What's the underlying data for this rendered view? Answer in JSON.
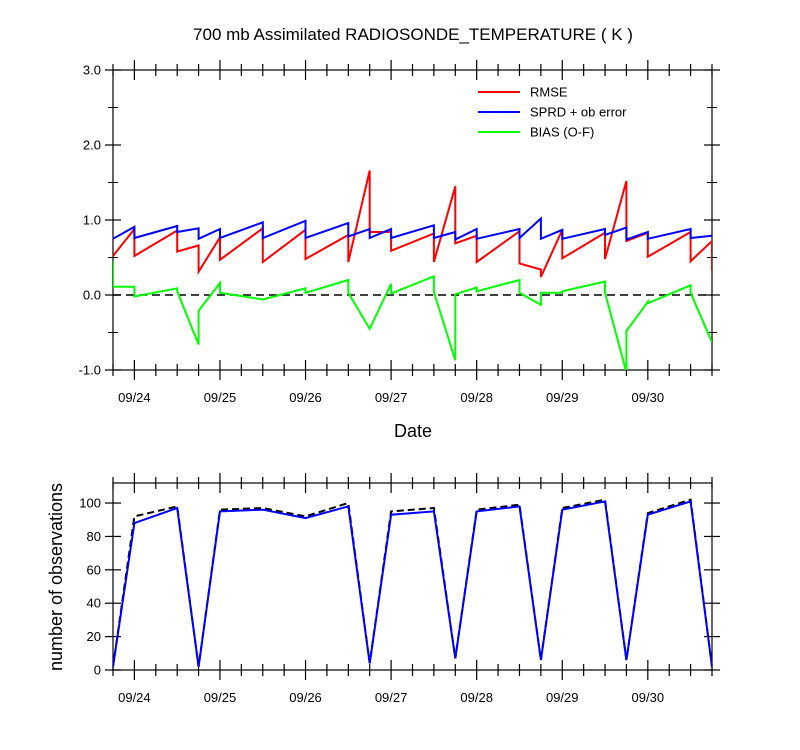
{
  "chart_data": [
    {
      "type": "line",
      "title": "700 mb Assimilated RADIOSONDE_TEMPERATURE ( K )",
      "xlabel": "Date",
      "ylabel": "",
      "x_tick_labels": [
        "09/24",
        "09/25",
        "09/26",
        "09/27",
        "09/28",
        "09/29",
        "09/30"
      ],
      "y_tick_labels": [
        "3.0",
        "2.0",
        "1.0",
        "0.0",
        "-1.0"
      ],
      "xlim": [
        23.75,
        30.75
      ],
      "ylim": [
        -1.0,
        3.0
      ],
      "grid": false,
      "legend_position": "top-right",
      "reference_line": {
        "y": 0.0,
        "style": "dashed"
      },
      "series": [
        {
          "name": "RMSE",
          "color": "#ff0000",
          "points": [
            [
              23.75,
              0.52
            ],
            [
              24.0,
              0.88
            ],
            [
              24.0,
              0.52
            ],
            [
              24.5,
              0.86
            ],
            [
              24.5,
              0.58
            ],
            [
              24.75,
              0.66
            ],
            [
              24.75,
              0.31
            ],
            [
              25.0,
              0.77
            ],
            [
              25.0,
              0.47
            ],
            [
              25.5,
              0.89
            ],
            [
              25.5,
              0.44
            ],
            [
              26.0,
              0.87
            ],
            [
              26.0,
              0.48
            ],
            [
              26.5,
              0.8
            ],
            [
              26.5,
              0.44
            ],
            [
              26.75,
              1.66
            ],
            [
              26.75,
              0.84
            ],
            [
              27.0,
              0.84
            ],
            [
              27.0,
              0.59
            ],
            [
              27.5,
              0.82
            ],
            [
              27.5,
              0.44
            ],
            [
              27.75,
              1.45
            ],
            [
              27.75,
              0.69
            ],
            [
              28.0,
              0.79
            ],
            [
              28.0,
              0.44
            ],
            [
              28.5,
              0.85
            ],
            [
              28.5,
              0.42
            ],
            [
              28.75,
              0.34
            ],
            [
              28.75,
              0.24
            ],
            [
              29.0,
              0.87
            ],
            [
              29.0,
              0.49
            ],
            [
              29.5,
              0.83
            ],
            [
              29.5,
              0.48
            ],
            [
              29.75,
              1.52
            ],
            [
              29.75,
              0.72
            ],
            [
              30.0,
              0.83
            ],
            [
              30.0,
              0.51
            ],
            [
              30.5,
              0.84
            ],
            [
              30.5,
              0.45
            ],
            [
              30.75,
              0.72
            ],
            [
              30.75,
              0.33
            ]
          ]
        },
        {
          "name": "SPRD + ob error",
          "color": "#0000ff",
          "points": [
            [
              23.75,
              0.75
            ],
            [
              24.0,
              0.91
            ],
            [
              24.0,
              0.76
            ],
            [
              24.5,
              0.92
            ],
            [
              24.5,
              0.84
            ],
            [
              24.75,
              0.89
            ],
            [
              24.75,
              0.75
            ],
            [
              25.0,
              0.88
            ],
            [
              25.0,
              0.76
            ],
            [
              25.5,
              0.97
            ],
            [
              25.5,
              0.76
            ],
            [
              26.0,
              0.99
            ],
            [
              26.0,
              0.76
            ],
            [
              26.5,
              0.96
            ],
            [
              26.5,
              0.78
            ],
            [
              26.75,
              0.88
            ],
            [
              26.75,
              0.76
            ],
            [
              27.0,
              0.88
            ],
            [
              27.0,
              0.76
            ],
            [
              27.5,
              0.93
            ],
            [
              27.5,
              0.76
            ],
            [
              27.75,
              0.84
            ],
            [
              27.75,
              0.74
            ],
            [
              28.0,
              0.88
            ],
            [
              28.0,
              0.75
            ],
            [
              28.5,
              0.88
            ],
            [
              28.5,
              0.76
            ],
            [
              28.75,
              1.02
            ],
            [
              28.75,
              0.75
            ],
            [
              29.0,
              0.87
            ],
            [
              29.0,
              0.75
            ],
            [
              29.5,
              0.88
            ],
            [
              29.5,
              0.8
            ],
            [
              29.75,
              0.9
            ],
            [
              29.75,
              0.74
            ],
            [
              30.0,
              0.84
            ],
            [
              30.0,
              0.75
            ],
            [
              30.5,
              0.88
            ],
            [
              30.5,
              0.76
            ],
            [
              30.75,
              0.79
            ]
          ]
        },
        {
          "name": "BIAS (O-F)",
          "color": "#00ff00",
          "points": [
            [
              23.75,
              0.45
            ],
            [
              23.75,
              0.11
            ],
            [
              24.0,
              0.11
            ],
            [
              24.0,
              -0.02
            ],
            [
              24.5,
              0.09
            ],
            [
              24.5,
              0.05
            ],
            [
              24.75,
              -0.66
            ],
            [
              24.75,
              -0.21
            ],
            [
              25.0,
              0.16
            ],
            [
              25.0,
              0.03
            ],
            [
              25.5,
              -0.06
            ],
            [
              26.0,
              0.09
            ],
            [
              26.0,
              0.03
            ],
            [
              26.5,
              0.2
            ],
            [
              26.5,
              0.03
            ],
            [
              26.75,
              -0.45
            ],
            [
              27.0,
              0.15
            ],
            [
              27.0,
              0.02
            ],
            [
              27.5,
              0.25
            ],
            [
              27.5,
              0.04
            ],
            [
              27.75,
              -0.87
            ],
            [
              27.75,
              0.01
            ],
            [
              28.0,
              0.1
            ],
            [
              28.0,
              0.05
            ],
            [
              28.5,
              0.2
            ],
            [
              28.5,
              0.03
            ],
            [
              28.75,
              -0.13
            ],
            [
              28.75,
              0.03
            ],
            [
              29.0,
              0.03
            ],
            [
              29.0,
              0.05
            ],
            [
              29.5,
              0.18
            ],
            [
              29.5,
              0.03
            ],
            [
              29.75,
              -1.03
            ],
            [
              29.75,
              -0.48
            ],
            [
              30.0,
              -0.09
            ],
            [
              30.0,
              -0.11
            ],
            [
              30.5,
              0.13
            ],
            [
              30.5,
              0.03
            ],
            [
              30.75,
              -0.63
            ]
          ]
        }
      ]
    },
    {
      "type": "line",
      "title": "",
      "xlabel": "",
      "ylabel": "number of observations",
      "x_tick_labels": [
        "09/24",
        "09/25",
        "09/26",
        "09/27",
        "09/28",
        "09/29",
        "09/30"
      ],
      "y_tick_labels": [
        "100",
        "80",
        "60",
        "40",
        "20",
        "0"
      ],
      "xlim": [
        23.75,
        30.75
      ],
      "ylim": [
        0,
        112
      ],
      "grid": false,
      "series": [
        {
          "style": "solid",
          "color": "#0000ff",
          "points": [
            [
              23.75,
              2
            ],
            [
              24.0,
              88
            ],
            [
              24.5,
              97
            ],
            [
              24.75,
              2
            ],
            [
              25.0,
              95
            ],
            [
              25.5,
              96
            ],
            [
              26.0,
              91
            ],
            [
              26.5,
              98
            ],
            [
              26.75,
              4
            ],
            [
              27.0,
              93
            ],
            [
              27.5,
              95
            ],
            [
              27.75,
              7
            ],
            [
              28.0,
              95
            ],
            [
              28.5,
              98
            ],
            [
              28.75,
              6
            ],
            [
              29.0,
              96
            ],
            [
              29.5,
              101
            ],
            [
              29.75,
              6
            ],
            [
              30.0,
              93
            ],
            [
              30.5,
              101
            ],
            [
              30.75,
              2
            ]
          ]
        },
        {
          "style": "dashed",
          "color": "#000000",
          "points": [
            [
              23.75,
              2
            ],
            [
              24.0,
              92
            ],
            [
              24.5,
              98
            ],
            [
              24.75,
              2
            ],
            [
              25.0,
              96
            ],
            [
              25.5,
              97
            ],
            [
              26.0,
              92
            ],
            [
              26.5,
              100
            ],
            [
              26.75,
              4
            ],
            [
              27.0,
              95
            ],
            [
              27.5,
              97
            ],
            [
              27.75,
              7
            ],
            [
              28.0,
              96
            ],
            [
              28.5,
              99
            ],
            [
              28.75,
              6
            ],
            [
              29.0,
              97
            ],
            [
              29.5,
              102
            ],
            [
              29.75,
              6
            ],
            [
              30.0,
              94
            ],
            [
              30.5,
              102
            ],
            [
              30.75,
              2
            ]
          ]
        }
      ]
    }
  ]
}
